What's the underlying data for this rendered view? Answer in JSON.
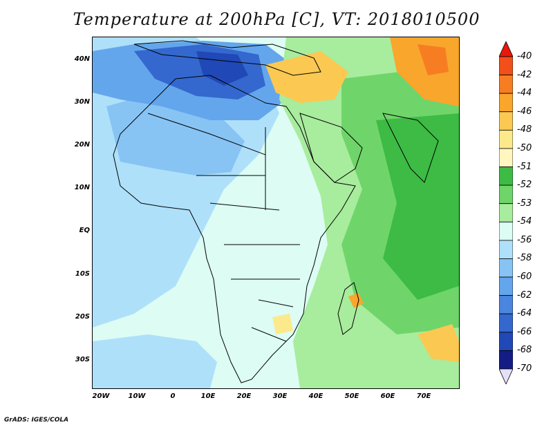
{
  "title": "Temperature at 200hPa [C], VT: 2018010500",
  "credit": "GrADS: IGES/COLA",
  "map": {
    "lat_labels": [
      "40N",
      "30N",
      "20N",
      "10N",
      "EQ",
      "10S",
      "20S",
      "30S"
    ],
    "lon_labels": [
      "20W",
      "10W",
      "0",
      "10E",
      "20E",
      "30E",
      "40E",
      "50E",
      "60E",
      "70E"
    ],
    "extent": {
      "lon": [
        -22,
        80
      ],
      "lat": [
        -37,
        44
      ]
    }
  },
  "colorbar": {
    "labels": [
      "-40",
      "-42",
      "-44",
      "-46",
      "-48",
      "-50",
      "-51",
      "-52",
      "-53",
      "-54",
      "-56",
      "-58",
      "-60",
      "-62",
      "-64",
      "-66",
      "-68",
      "-70"
    ],
    "colors": [
      "#e8180c",
      "#f2501a",
      "#f77d22",
      "#f9a62c",
      "#fbc852",
      "#fce98c",
      "#fff6c0",
      "#3dbb45",
      "#6fd56a",
      "#a8ec9d",
      "#dcfcf4",
      "#aee0fa",
      "#87c4f4",
      "#64a6ec",
      "#4a86de",
      "#3468ce",
      "#2048b6",
      "#141c86",
      "#e4e0f8"
    ]
  }
}
